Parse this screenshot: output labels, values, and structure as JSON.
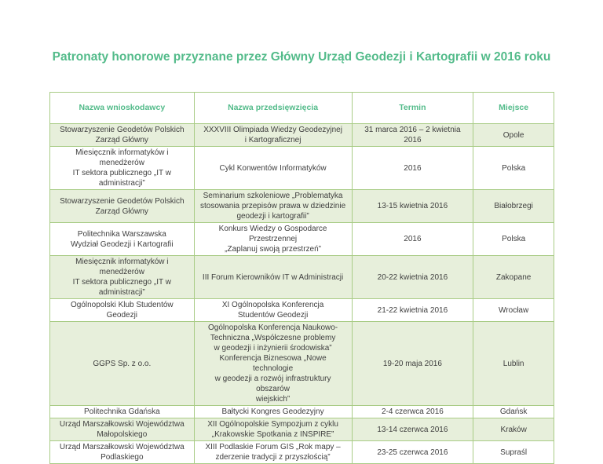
{
  "page": {
    "title": "Patronaty honorowe przyznane przez Główny Urząd Geodezji i Kartografii w 2016 roku"
  },
  "colors": {
    "accent_green": "#53bb8a",
    "table_border": "#a9cc86",
    "banded_row_fill": "#e7efdb",
    "body_text": "#3f3f3f"
  },
  "table": {
    "headers": [
      "Nazwa wnioskodawcy",
      "Nazwa przedsięwzięcia",
      "Termin",
      "Miejsce"
    ],
    "rows": [
      {
        "applicant": "Stowarzyszenie Geodetów Polskich\nZarząd Główny",
        "project": "XXXVIII Olimpiada Wiedzy Geodezyjnej\ni Kartograficznej",
        "date": "31 marca 2016 – 2 kwietnia 2016",
        "place": "Opole"
      },
      {
        "applicant": "Miesięcznik informatyków i menedżerów\nIT sektora publicznego „IT w administracji”",
        "project": "Cykl Konwentów Informatyków",
        "date": "2016",
        "place": "Polska"
      },
      {
        "applicant": "Stowarzyszenie Geodetów Polskich\nZarząd Główny",
        "project": "Seminarium szkoleniowe „Problematyka\nstosowania przepisów prawa w dziedzinie\ngeodezji i kartografii”",
        "date": "13-15 kwietnia 2016",
        "place": "Białobrzegi"
      },
      {
        "applicant": "Politechnika Warszawska\nWydział Geodezji i Kartografii",
        "project": "Konkurs Wiedzy o Gospodarce Przestrzennej\n„Zaplanuj swoją przestrzeń”",
        "date": "2016",
        "place": "Polska"
      },
      {
        "applicant": "Miesięcznik informatyków i menedżerów\nIT sektora publicznego „IT w administracji”",
        "project": "III Forum Kierowników IT w Administracji",
        "date": "20-22 kwietnia 2016",
        "place": "Zakopane"
      },
      {
        "applicant": "Ogólnopolski Klub Studentów Geodezji",
        "project": "XI Ogólnopolska Konferencja\nStudentów Geodezji",
        "date": "21-22 kwietnia 2016",
        "place": "Wrocław"
      },
      {
        "applicant": "GGPS Sp. z o.o.",
        "project": "Ogólnopolska Konferencja Naukowo-\nTechniczna „Współczesne problemy\nw geodezji i inżynierii środowiska”\nKonferencja Biznesowa „Nowe technologie\nw geodezji a rozwój infrastruktury obszarów\nwiejskich”",
        "date": "19-20 maja 2016",
        "place": "Lublin"
      },
      {
        "applicant": "Politechnika Gdańska",
        "project": "Bałtycki Kongres Geodezyjny",
        "date": "2-4 czerwca 2016",
        "place": "Gdańsk"
      },
      {
        "applicant": "Urząd Marszałkowski Województwa\nMałopolskiego",
        "project": "XII Ogólnopolskie Sympozjum z cyklu\n„Krakowskie Spotkania z INSPIRE”",
        "date": "13-14 czerwca 2016",
        "place": "Kraków"
      },
      {
        "applicant": "Urząd Marszałkowski Województwa\nPodlaskiego",
        "project": "XIII Podlaskie Forum GIS „Rok mapy –\nzderzenie tradycji z przyszłością”",
        "date": "23-25 czerwca 2016",
        "place": "Supraśl"
      }
    ]
  }
}
